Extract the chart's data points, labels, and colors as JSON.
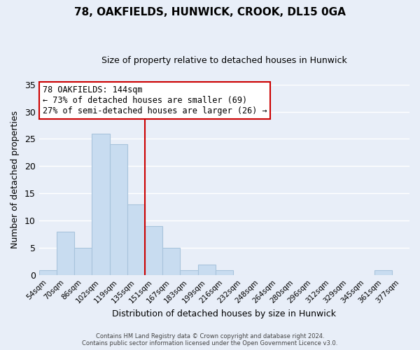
{
  "title": "78, OAKFIELDS, HUNWICK, CROOK, DL15 0GA",
  "subtitle": "Size of property relative to detached houses in Hunwick",
  "xlabel": "Distribution of detached houses by size in Hunwick",
  "ylabel": "Number of detached properties",
  "bin_labels": [
    "54sqm",
    "70sqm",
    "86sqm",
    "102sqm",
    "119sqm",
    "135sqm",
    "151sqm",
    "167sqm",
    "183sqm",
    "199sqm",
    "216sqm",
    "232sqm",
    "248sqm",
    "264sqm",
    "280sqm",
    "296sqm",
    "312sqm",
    "329sqm",
    "345sqm",
    "361sqm",
    "377sqm"
  ],
  "bar_heights": [
    1,
    8,
    5,
    26,
    24,
    13,
    9,
    5,
    1,
    2,
    1,
    0,
    0,
    0,
    0,
    0,
    0,
    0,
    0,
    1,
    0
  ],
  "bar_color": "#c8dcf0",
  "bar_edgecolor": "#a8c4dc",
  "vline_color": "#cc0000",
  "vline_pos": 5.5,
  "ylim": [
    0,
    35
  ],
  "yticks": [
    0,
    5,
    10,
    15,
    20,
    25,
    30,
    35
  ],
  "annotation_title": "78 OAKFIELDS: 144sqm",
  "annotation_line1": "← 73% of detached houses are smaller (69)",
  "annotation_line2": "27% of semi-detached houses are larger (26) →",
  "annotation_box_color": "#ffffff",
  "annotation_box_edgecolor": "#cc0000",
  "footer_line1": "Contains HM Land Registry data © Crown copyright and database right 2024.",
  "footer_line2": "Contains public sector information licensed under the Open Government Licence v3.0.",
  "background_color": "#e8eef8",
  "grid_color": "#ffffff"
}
